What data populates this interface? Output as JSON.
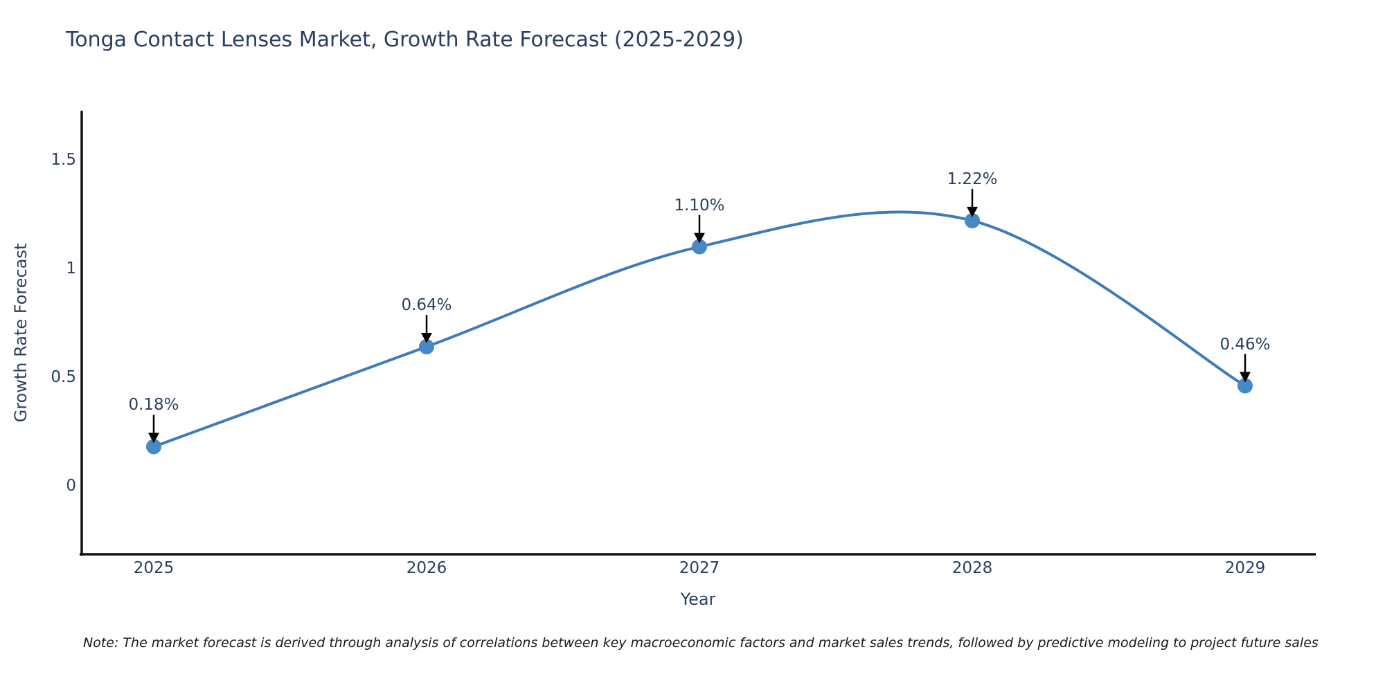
{
  "note": "Note: The market forecast is derived through analysis of correlations between key macroeconomic factors and market sales trends, followed by predictive modeling to project future sales",
  "chart_data": {
    "type": "line",
    "line_shape": "spline",
    "title": "Tonga Contact Lenses Market, Growth Rate Forecast (2025-2029)",
    "xlabel": "Year",
    "ylabel": "Growth Rate Forecast",
    "x": [
      2025,
      2026,
      2027,
      2028,
      2029
    ],
    "values": [
      0.18,
      0.64,
      1.1,
      1.22,
      0.46
    ],
    "point_labels": [
      "0.18%",
      "0.64%",
      "1.10%",
      "1.22%",
      "0.46%"
    ],
    "xticklabels": [
      "2025",
      "2026",
      "2027",
      "2028",
      "2029"
    ],
    "yticks": [
      0,
      0.5,
      1,
      1.5
    ],
    "yticklabels": [
      "0",
      "0.5",
      "1",
      "1.5"
    ],
    "xlim": [
      2024.73,
      2029.26
    ],
    "ylim": [
      -0.31,
      1.73
    ],
    "grid": false,
    "legend": false,
    "markers": true,
    "annotations_have_arrows": true,
    "colors": {
      "line": "#3d7cb8",
      "marker": "#4689c5",
      "axis": "#111111",
      "text": "#2a3f5f",
      "arrow": "#000000",
      "note_text": "#1a1a1a",
      "background": "#ffffff"
    }
  }
}
